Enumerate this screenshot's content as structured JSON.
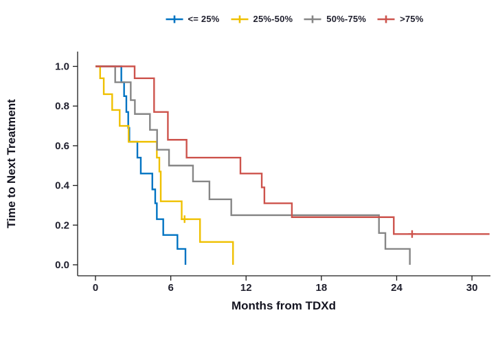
{
  "legend": {
    "items": [
      {
        "id": "le25",
        "label": "<= 25%",
        "color": "#0073C2"
      },
      {
        "id": "q25_50",
        "label": "25%-50%",
        "color": "#EFC000"
      },
      {
        "id": "q50_75",
        "label": "50%-75%",
        "color": "#868686"
      },
      {
        "id": "gt75",
        "label": ">75%",
        "color": "#CD534C"
      }
    ]
  },
  "chart_data": {
    "type": "line",
    "subtype": "kaplan_meier_step_survival",
    "title": "",
    "xlabel": "Months from TDXd",
    "ylabel": "Time to Next Treatment",
    "x_ticks": [
      0,
      6,
      12,
      18,
      24,
      30
    ],
    "y_ticks": [
      0.0,
      0.2,
      0.4,
      0.6,
      0.8,
      1.0
    ],
    "xlim": [
      0,
      31.5
    ],
    "ylim": [
      0,
      1
    ],
    "grid": false,
    "legend_position": "top-center",
    "series": [
      {
        "id": "le25",
        "name": "<= 25%",
        "color": "#0073C2",
        "start_value": 1.0,
        "drops": [
          [
            2.06,
            0.92
          ],
          [
            2.28,
            0.85
          ],
          [
            2.46,
            0.77
          ],
          [
            2.61,
            0.69
          ],
          [
            2.7,
            0.62
          ],
          [
            3.34,
            0.54
          ],
          [
            3.61,
            0.46
          ],
          [
            4.53,
            0.38
          ],
          [
            4.76,
            0.31
          ],
          [
            4.89,
            0.23
          ],
          [
            5.4,
            0.15
          ],
          [
            6.53,
            0.08
          ],
          [
            7.17,
            0.0
          ]
        ],
        "end_x": 7.17,
        "censors": []
      },
      {
        "id": "q25_50",
        "name": "25%-50%",
        "color": "#EFC000",
        "start_value": 1.0,
        "drops": [
          [
            0.37,
            0.94
          ],
          [
            0.66,
            0.86
          ],
          [
            1.33,
            0.78
          ],
          [
            1.93,
            0.7
          ],
          [
            2.64,
            0.62
          ],
          [
            4.89,
            0.54
          ],
          [
            5.09,
            0.47
          ],
          [
            5.2,
            0.32
          ],
          [
            6.87,
            0.23
          ],
          [
            8.33,
            0.115
          ],
          [
            10.96,
            0.0
          ]
        ],
        "end_x": 10.96,
        "censors": [
          [
            7.1,
            0.23
          ]
        ]
      },
      {
        "id": "q50_75",
        "name": "50%-75%",
        "color": "#868686",
        "start_value": 1.0,
        "drops": [
          [
            1.57,
            0.92
          ],
          [
            2.81,
            0.83
          ],
          [
            3.14,
            0.76
          ],
          [
            4.34,
            0.68
          ],
          [
            4.91,
            0.58
          ],
          [
            5.86,
            0.5
          ],
          [
            7.77,
            0.42
          ],
          [
            9.08,
            0.33
          ],
          [
            10.82,
            0.25
          ],
          [
            22.59,
            0.16
          ],
          [
            23.1,
            0.08
          ],
          [
            25.05,
            0.0
          ]
        ],
        "end_x": 25.05,
        "censors": []
      },
      {
        "id": "gt75",
        "name": ">75%",
        "color": "#CD534C",
        "start_value": 1.0,
        "drops": [
          [
            3.12,
            0.94
          ],
          [
            4.67,
            0.77
          ],
          [
            5.77,
            0.63
          ],
          [
            7.26,
            0.54
          ],
          [
            11.55,
            0.46
          ],
          [
            13.25,
            0.39
          ],
          [
            13.46,
            0.31
          ],
          [
            15.65,
            0.24
          ],
          [
            23.77,
            0.155
          ]
        ],
        "end_x": 31.4,
        "censors": [
          [
            25.23,
            0.155
          ]
        ]
      }
    ]
  }
}
